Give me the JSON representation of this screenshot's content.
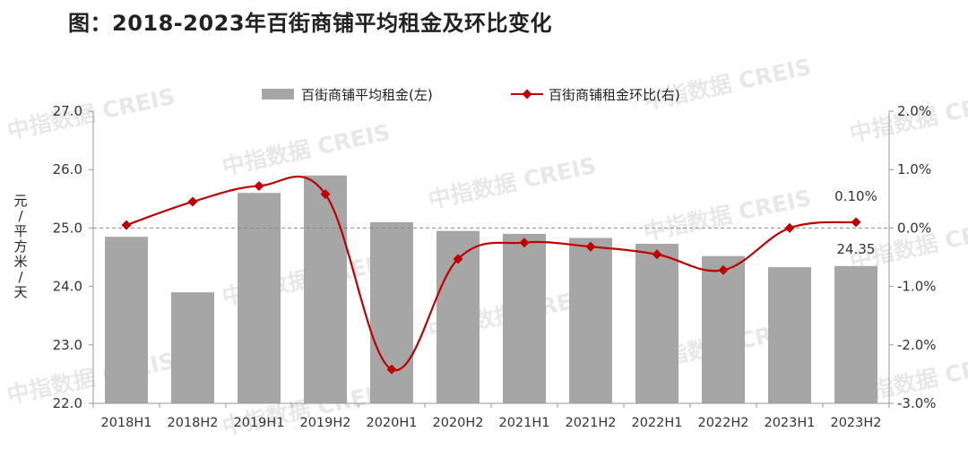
{
  "header": {
    "title": "图：2018-2023年百街商铺平均租金及环比变化"
  },
  "watermark": {
    "text": "中指数据 CREIS"
  },
  "chart_data": {
    "type": "bar+line",
    "categories": [
      "2018H1",
      "2018H2",
      "2019H1",
      "2019H2",
      "2020H1",
      "2020H2",
      "2021H1",
      "2021H2",
      "2022H1",
      "2022H2",
      "2023H1",
      "2023H2"
    ],
    "series": [
      {
        "name": "百街商铺平均租金(左)",
        "type": "bar",
        "axis": "left",
        "color": "#a6a6a6",
        "values": [
          24.85,
          23.9,
          25.6,
          25.9,
          25.1,
          24.95,
          24.9,
          24.83,
          24.73,
          24.52,
          24.33,
          24.35
        ]
      },
      {
        "name": "百街商铺租金环比(右)",
        "type": "line",
        "axis": "right",
        "color": "#c00000",
        "marker": "diamond",
        "values": [
          0.05,
          0.45,
          0.72,
          0.58,
          -2.42,
          -0.53,
          -0.25,
          -0.32,
          -0.45,
          -0.72,
          0.0,
          0.1
        ]
      }
    ],
    "left_axis": {
      "label": "元/平方米/天",
      "ylim": [
        22.0,
        27.0
      ],
      "ticks": [
        "22.0",
        "23.0",
        "24.0",
        "25.0",
        "26.0",
        "27.0"
      ]
    },
    "right_axis": {
      "ylim": [
        -3.0,
        2.0
      ],
      "ticks": [
        "-3.0%",
        "-2.0%",
        "-1.0%",
        "0.0%",
        "1.0%",
        "2.0%"
      ]
    },
    "reference_line": {
      "axis": "right",
      "value": 0.0,
      "style": "dashed"
    },
    "annotations": [
      {
        "series": 0,
        "index": 11,
        "text": "24.35"
      },
      {
        "series": 1,
        "index": 11,
        "text": "0.10%"
      }
    ],
    "legend_position": "top",
    "grid": false
  }
}
